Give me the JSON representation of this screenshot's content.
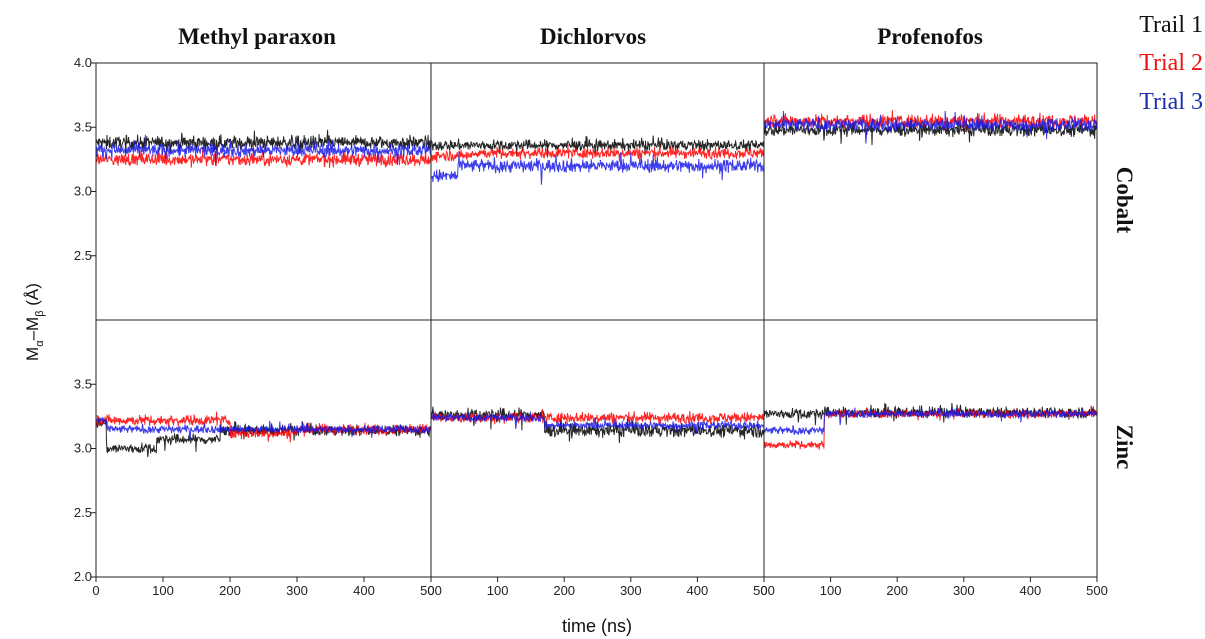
{
  "chart_data": {
    "type": "line",
    "columns": [
      "Methyl paraxon",
      "Dichlorvos",
      "Profenofos"
    ],
    "rows": [
      "Cobalt",
      "Zinc"
    ],
    "xlabel": "time (ns)",
    "ylabel_main": "M",
    "ylabel_sub1": "α",
    "ylabel_dash": "–M",
    "ylabel_sub2": "β",
    "ylabel_unit": " (Å)",
    "xlim": [
      0,
      500
    ],
    "x_ticks": [
      "0",
      "100",
      "200",
      "300",
      "400",
      "500"
    ],
    "x_tick_values": [
      0,
      100,
      200,
      300,
      400,
      500
    ],
    "ylim_top": [
      2.0,
      4.0
    ],
    "ylim_bottom": [
      2.0,
      4.0
    ],
    "y_ticks_top": [
      "2.5",
      "3.0",
      "3.5",
      "4.0"
    ],
    "y_tick_values_top": [
      2.5,
      3.0,
      3.5,
      4.0
    ],
    "y_ticks_bottom": [
      "2.0",
      "2.5",
      "3.0",
      "3.5"
    ],
    "y_tick_values_bottom": [
      2.0,
      2.5,
      3.0,
      3.5
    ],
    "legend_position": "top-right",
    "series": [
      {
        "name": "Trail 1",
        "color": "#000000"
      },
      {
        "name": "Trial 2",
        "color": "#ff0000"
      },
      {
        "name": "Trial 3",
        "color": "#1a1ae6"
      }
    ],
    "panels": [
      {
        "column": "Methyl paraxon",
        "row": "Cobalt",
        "traces": [
          {
            "series": 0,
            "noise": 0.05,
            "segments": [
              [
                0,
                500,
                3.38
              ]
            ]
          },
          {
            "series": 1,
            "noise": 0.05,
            "segments": [
              [
                0,
                500,
                3.25
              ]
            ]
          },
          {
            "series": 2,
            "noise": 0.05,
            "segments": [
              [
                0,
                500,
                3.32
              ]
            ]
          }
        ]
      },
      {
        "column": "Dichlorvos",
        "row": "Cobalt",
        "traces": [
          {
            "series": 0,
            "noise": 0.04,
            "segments": [
              [
                0,
                500,
                3.36
              ]
            ]
          },
          {
            "series": 1,
            "noise": 0.04,
            "segments": [
              [
                0,
                60,
                3.28
              ],
              [
                60,
                500,
                3.3
              ]
            ]
          },
          {
            "series": 2,
            "noise": 0.05,
            "segments": [
              [
                0,
                40,
                3.12
              ],
              [
                40,
                500,
                3.2
              ]
            ]
          }
        ]
      },
      {
        "column": "Profenofos",
        "row": "Cobalt",
        "traces": [
          {
            "series": 0,
            "noise": 0.05,
            "segments": [
              [
                0,
                500,
                3.48
              ]
            ]
          },
          {
            "series": 1,
            "noise": 0.05,
            "segments": [
              [
                0,
                500,
                3.55
              ]
            ]
          },
          {
            "series": 2,
            "noise": 0.05,
            "segments": [
              [
                0,
                500,
                3.52
              ]
            ]
          }
        ]
      },
      {
        "column": "Methyl paraxon",
        "row": "Zinc",
        "traces": [
          {
            "series": 0,
            "noise": 0.04,
            "segments": [
              [
                0,
                15,
                3.2
              ],
              [
                15,
                90,
                3.0
              ],
              [
                90,
                185,
                3.07
              ],
              [
                185,
                500,
                3.14
              ]
            ]
          },
          {
            "series": 1,
            "noise": 0.04,
            "segments": [
              [
                0,
                200,
                3.22
              ],
              [
                200,
                300,
                3.12
              ],
              [
                300,
                500,
                3.15
              ]
            ]
          },
          {
            "series": 2,
            "noise": 0.03,
            "segments": [
              [
                0,
                15,
                3.22
              ],
              [
                15,
                500,
                3.15
              ]
            ]
          }
        ]
      },
      {
        "column": "Dichlorvos",
        "row": "Zinc",
        "traces": [
          {
            "series": 0,
            "noise": 0.05,
            "segments": [
              [
                0,
                170,
                3.26
              ],
              [
                170,
                500,
                3.14
              ]
            ]
          },
          {
            "series": 1,
            "noise": 0.04,
            "segments": [
              [
                0,
                500,
                3.24
              ]
            ]
          },
          {
            "series": 2,
            "noise": 0.03,
            "segments": [
              [
                0,
                170,
                3.24
              ],
              [
                170,
                500,
                3.18
              ]
            ]
          }
        ]
      },
      {
        "column": "Profenofos",
        "row": "Zinc",
        "traces": [
          {
            "series": 0,
            "noise": 0.04,
            "segments": [
              [
                0,
                90,
                3.27
              ],
              [
                90,
                500,
                3.28
              ]
            ]
          },
          {
            "series": 1,
            "noise": 0.03,
            "segments": [
              [
                0,
                90,
                3.03
              ],
              [
                90,
                500,
                3.27
              ]
            ]
          },
          {
            "series": 2,
            "noise": 0.03,
            "segments": [
              [
                0,
                90,
                3.14
              ],
              [
                90,
                500,
                3.27
              ]
            ]
          }
        ]
      }
    ]
  }
}
